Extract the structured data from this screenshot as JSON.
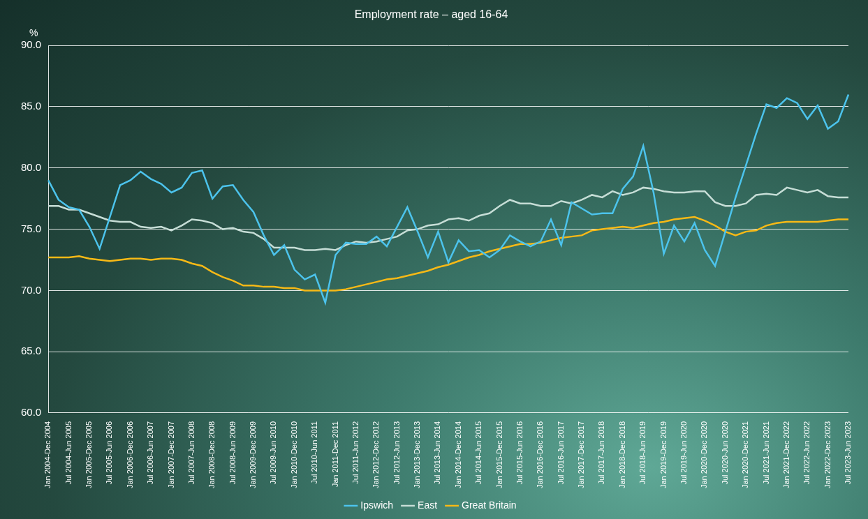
{
  "chart_data": {
    "type": "line",
    "title": "Employment rate – aged 16-64",
    "y_label": "%",
    "categories": [
      "Jan 2004-Dec 2004",
      null,
      "Jul 2004-Jun 2005",
      null,
      "Jan 2005-Dec 2005",
      null,
      "Jul 2005-Jun 2006",
      null,
      "Jan 2006-Dec 2006",
      null,
      "Jul 2006-Jun 2007",
      null,
      "Jan 2007-Dec 2007",
      null,
      "Jul 2007-Jun 2008",
      null,
      "Jan 2008-Dec 2008",
      null,
      "Jul 2008-Jun 2009",
      null,
      "Jan 2009-Dec 2009",
      null,
      "Jul 2009-Jun 2010",
      null,
      "Jan 2010-Dec 2010",
      null,
      "Jul 2010-Jun 2011",
      null,
      "Jan 2011-Dec 2011",
      null,
      "Jul 2011-Jun 2012",
      null,
      "Jan 2012-Dec 2012",
      null,
      "Jul 2012-Jun 2013",
      null,
      "Jan 2013-Dec 2013",
      null,
      "Jul 2013-Jun 2014",
      null,
      "Jan 2014-Dec 2014",
      null,
      "Jul 2014-Jun 2015",
      null,
      "Jan 2015-Dec 2015",
      null,
      "Jul 2015-Jun 2016",
      null,
      "Jan 2016-Dec 2016",
      null,
      "Jul 2016-Jun 2017",
      null,
      "Jan 2017-Dec 2017",
      null,
      "Jul 2017-Jun 2018",
      null,
      "Jan 2018-Dec 2018",
      null,
      "Jul 2018-Jun 2019",
      null,
      "Jan 2019-Dec 2019",
      null,
      "Jul 2019-Jun 2020",
      null,
      "Jan 2020-Dec 2020",
      null,
      "Jul 2020-Jun 2020",
      null,
      "Jan 2020-Dec 2021",
      null,
      "Jul 2021-Jun 2021",
      null,
      "Jan 2021-Dec 2022",
      null,
      "Jul 2022-Jun 2022",
      null,
      "Jan 2022-Dec 2023",
      null,
      "Jul 2023-Jun 2023"
    ],
    "series": [
      {
        "name": "Ipswich",
        "color": "#4cc3ec",
        "values": [
          79.0,
          77.4,
          76.8,
          76.6,
          75.2,
          73.4,
          76.0,
          78.6,
          79.0,
          79.7,
          79.1,
          78.7,
          78.0,
          78.4,
          79.6,
          79.8,
          77.5,
          78.5,
          78.6,
          77.4,
          76.4,
          74.5,
          72.9,
          73.7,
          71.7,
          70.9,
          71.3,
          69.0,
          72.9,
          73.9,
          73.8,
          73.8,
          74.4,
          73.6,
          75.2,
          76.8,
          74.8,
          72.7,
          74.8,
          72.3,
          74.1,
          73.2,
          73.3,
          72.7,
          73.3,
          74.5,
          74.0,
          73.6,
          74.0,
          75.8,
          73.7,
          77.2,
          76.7,
          76.2,
          76.3,
          76.3,
          78.3,
          79.3,
          81.8,
          78.0,
          73.0,
          75.3,
          74.0,
          75.5,
          73.3,
          72.0,
          74.8,
          77.6,
          80.2,
          82.8,
          85.2,
          84.9,
          85.7,
          85.3,
          84.0,
          85.1,
          83.2,
          83.8,
          86.0
        ]
      },
      {
        "name": "East",
        "color": "#c6ddd6",
        "values": [
          76.9,
          76.9,
          76.6,
          76.6,
          76.3,
          76.0,
          75.7,
          75.6,
          75.6,
          75.2,
          75.1,
          75.2,
          74.9,
          75.3,
          75.8,
          75.7,
          75.5,
          75.0,
          75.1,
          74.8,
          74.7,
          74.2,
          73.5,
          73.5,
          73.5,
          73.3,
          73.3,
          73.4,
          73.3,
          73.7,
          74.0,
          73.9,
          74.0,
          74.2,
          74.4,
          74.9,
          75.0,
          75.3,
          75.4,
          75.8,
          75.9,
          75.7,
          76.1,
          76.3,
          76.9,
          77.4,
          77.1,
          77.1,
          76.9,
          76.9,
          77.3,
          77.1,
          77.4,
          77.8,
          77.6,
          78.1,
          77.8,
          78.0,
          78.4,
          78.3,
          78.1,
          78.0,
          78.0,
          78.1,
          78.1,
          77.2,
          76.9,
          76.9,
          77.1,
          77.8,
          77.9,
          77.8,
          78.4,
          78.2,
          78.0,
          78.2,
          77.7,
          77.6,
          77.6
        ]
      },
      {
        "name": "Great Britain",
        "color": "#f7b916",
        "values": [
          72.7,
          72.7,
          72.7,
          72.8,
          72.6,
          72.5,
          72.4,
          72.5,
          72.6,
          72.6,
          72.5,
          72.6,
          72.6,
          72.5,
          72.2,
          72.0,
          71.5,
          71.1,
          70.8,
          70.4,
          70.4,
          70.3,
          70.3,
          70.2,
          70.2,
          70.0,
          70.0,
          70.0,
          70.0,
          70.1,
          70.3,
          70.5,
          70.7,
          70.9,
          71.0,
          71.2,
          71.4,
          71.6,
          71.9,
          72.1,
          72.4,
          72.7,
          72.9,
          73.2,
          73.4,
          73.6,
          73.8,
          73.8,
          73.9,
          74.1,
          74.3,
          74.4,
          74.5,
          74.9,
          75.0,
          75.1,
          75.2,
          75.1,
          75.3,
          75.5,
          75.6,
          75.8,
          75.9,
          76.0,
          75.7,
          75.3,
          74.8,
          74.5,
          74.8,
          74.9,
          75.3,
          75.5,
          75.6,
          75.6,
          75.6,
          75.6,
          75.7,
          75.8,
          75.8
        ]
      }
    ],
    "ylim": [
      60,
      90
    ],
    "yticks": [
      {
        "value": 60,
        "label": "60.0"
      },
      {
        "value": 65,
        "label": "65.0"
      },
      {
        "value": 70,
        "label": "70.0"
      },
      {
        "value": 75,
        "label": "75.0"
      },
      {
        "value": 80,
        "label": "80.0"
      },
      {
        "value": 85,
        "label": "85.0"
      },
      {
        "value": 90,
        "label": "90.0"
      }
    ],
    "grid": true,
    "legend": "bottom"
  }
}
